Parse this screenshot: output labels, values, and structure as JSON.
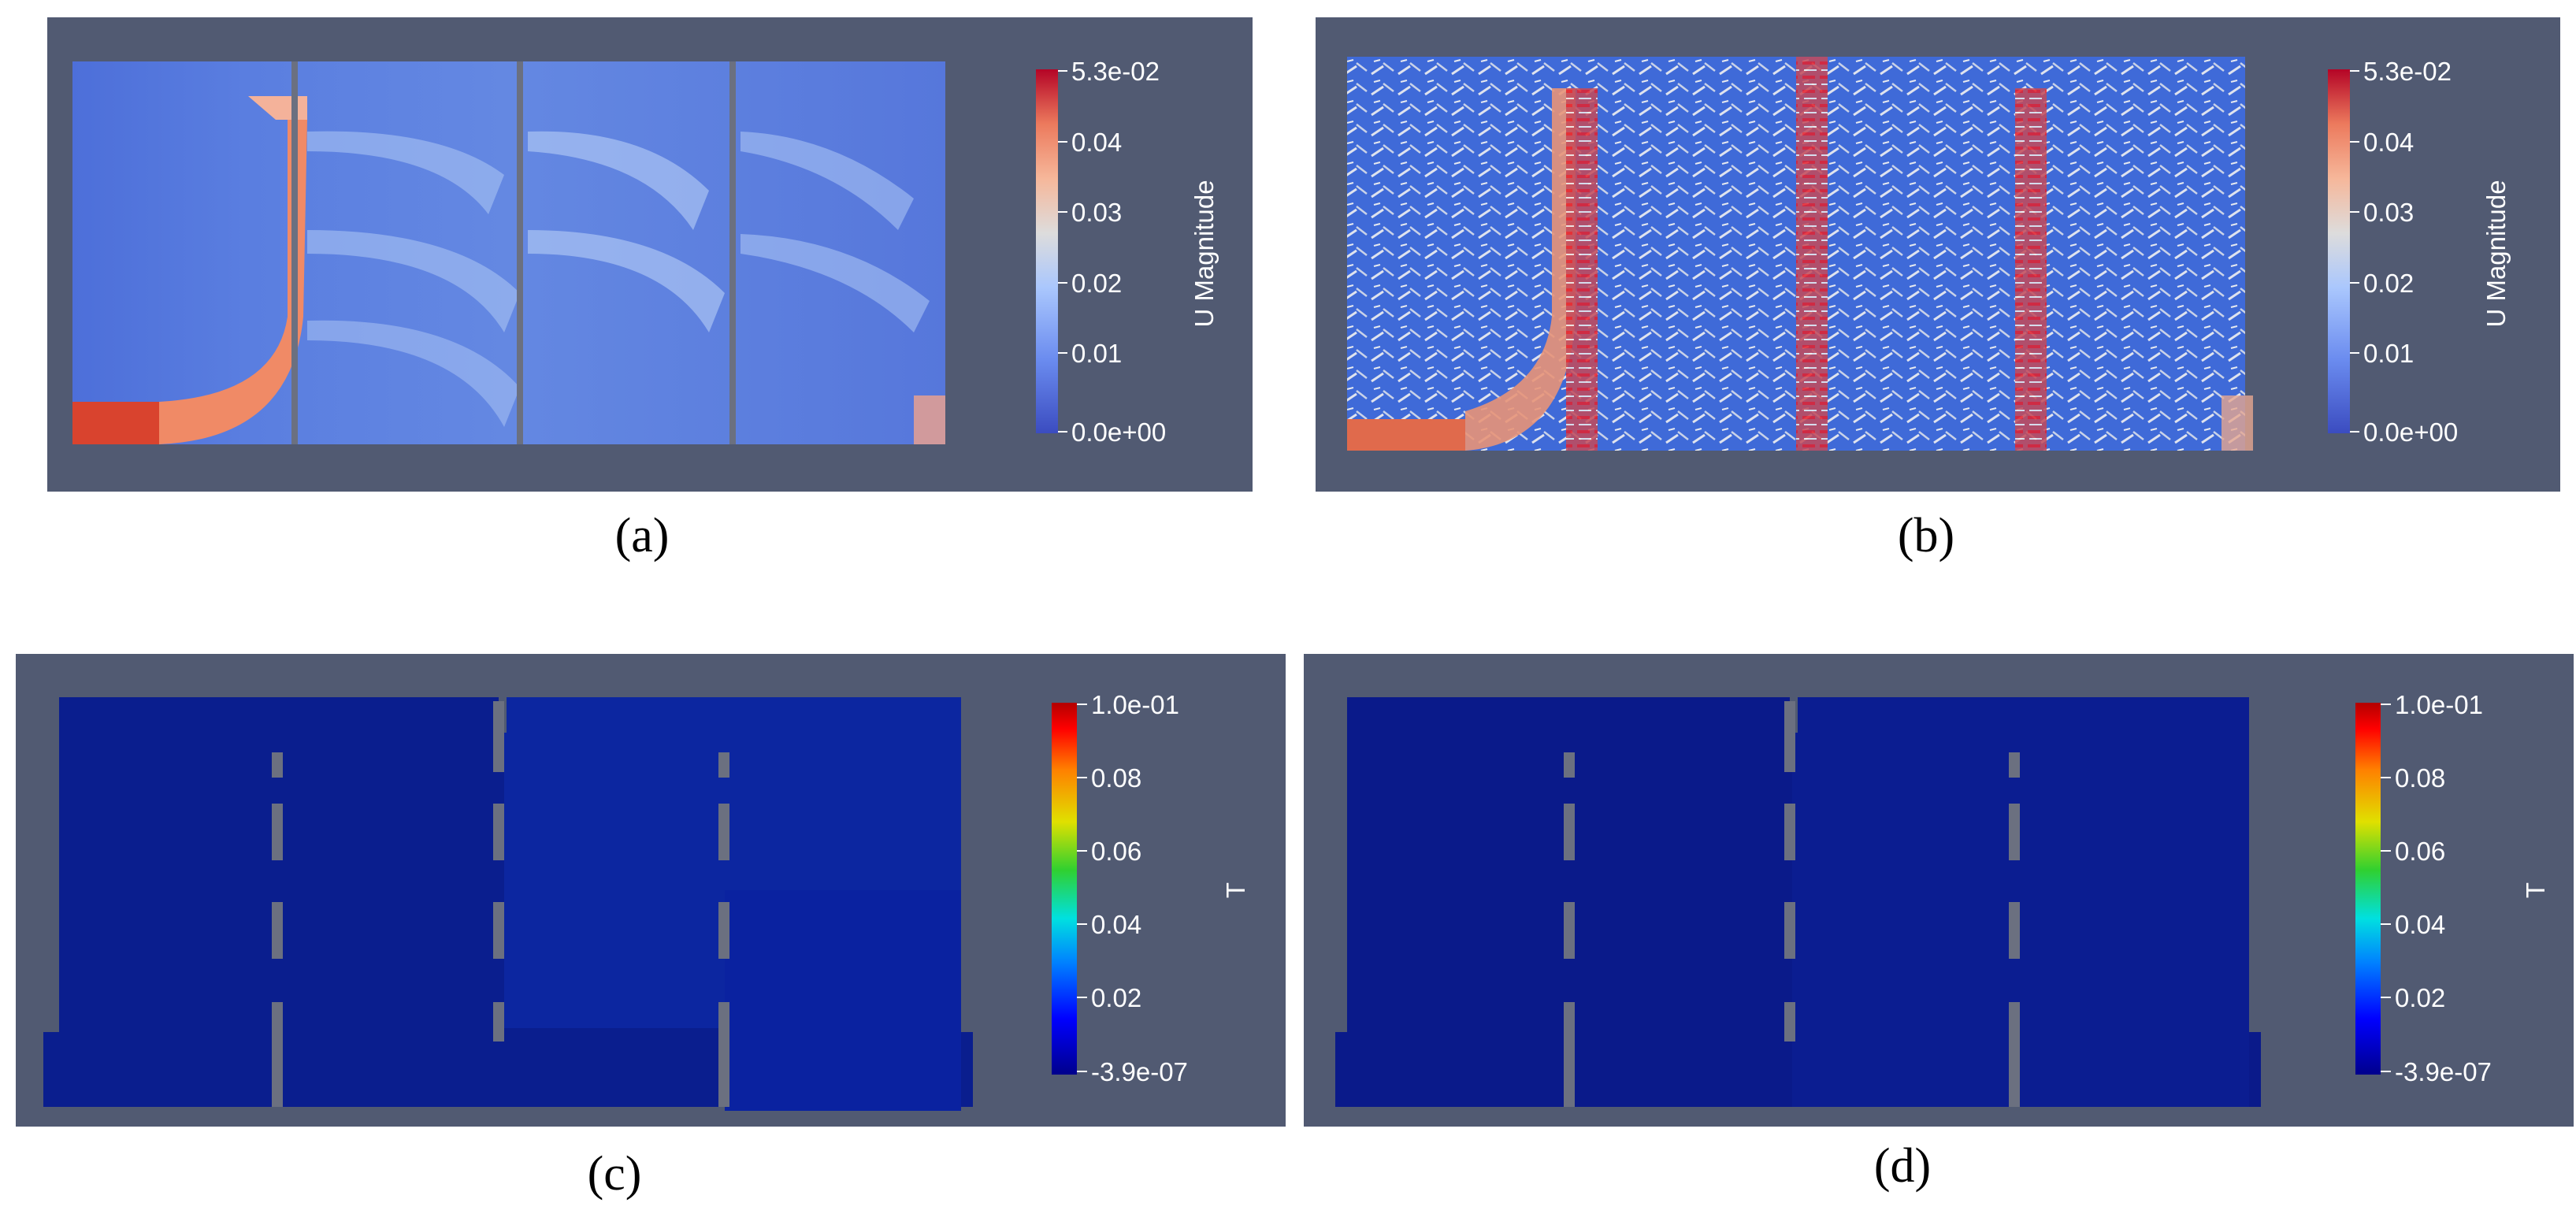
{
  "figure": {
    "panels": [
      {
        "id": "a",
        "caption": "(a)",
        "field": "U Magnitude",
        "colormap": "cool-warm",
        "colorbar": {
          "title": "U Magnitude",
          "ticks": [
            "5.3e-02",
            "0.04",
            "0.03",
            "0.02",
            "0.01",
            "0.0e+00"
          ],
          "min": 0.0,
          "max": 0.053
        },
        "overlay": "none"
      },
      {
        "id": "b",
        "caption": "(b)",
        "field": "U Magnitude",
        "colormap": "cool-warm",
        "colorbar": {
          "title": "U Magnitude",
          "ticks": [
            "5.3e-02",
            "0.04",
            "0.03",
            "0.02",
            "0.01",
            "0.0e+00"
          ],
          "min": 0.0,
          "max": 0.053
        },
        "overlay": "velocity glyphs"
      },
      {
        "id": "c",
        "caption": "(c)",
        "field": "T",
        "colormap": "rainbow",
        "colorbar": {
          "title": "T",
          "ticks": [
            "1.0e-01",
            "0.08",
            "0.06",
            "0.04",
            "0.02",
            "-3.9e-07"
          ],
          "min": -3.9e-07,
          "max": 0.1
        },
        "overlay": "none"
      },
      {
        "id": "d",
        "caption": "(d)",
        "field": "T",
        "colormap": "rainbow",
        "colorbar": {
          "title": "T",
          "ticks": [
            "1.0e-01",
            "0.08",
            "0.06",
            "0.04",
            "0.02",
            "-3.9e-07"
          ],
          "min": -3.9e-07,
          "max": 0.1
        },
        "overlay": "none"
      }
    ],
    "colors": {
      "background": "#515a72",
      "baffle": "#6b7080",
      "velocity_low": "#3b4cc0",
      "velocity_high": "#b40426",
      "temperature_low": "#00008c",
      "temperature_high": "#b30000"
    }
  }
}
